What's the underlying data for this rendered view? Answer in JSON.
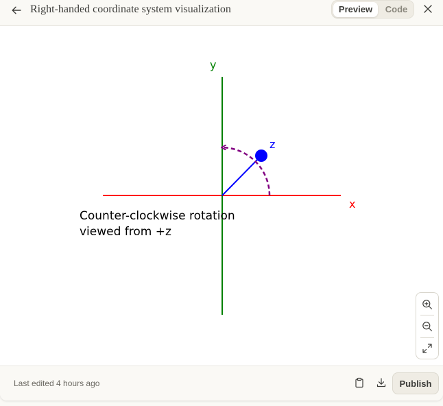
{
  "header": {
    "title": "Right-handed coordinate system visualization",
    "tabs": [
      {
        "label": "Preview",
        "active": true
      },
      {
        "label": "Code",
        "active": false
      }
    ],
    "back_icon": "arrow-left-icon",
    "close_icon": "close-icon"
  },
  "diagram": {
    "x_label": "x",
    "y_label": "y",
    "z_label": "z",
    "caption_line1": "Counter-clockwise rotation",
    "caption_line2": "viewed from +z",
    "colors": {
      "x_axis": "#ff0000",
      "y_axis": "#008000",
      "z_axis": "#0000ff",
      "rotation_arc": "#800080",
      "caption": "#000000"
    }
  },
  "zoom_controls": {
    "icons": [
      "zoom-in-icon",
      "zoom-out-icon",
      "fullscreen-icon"
    ]
  },
  "footer": {
    "status_text": "Last edited 4 hours ago",
    "copy_icon": "clipboard-icon",
    "download_icon": "download-icon",
    "publish_label": "Publish"
  }
}
